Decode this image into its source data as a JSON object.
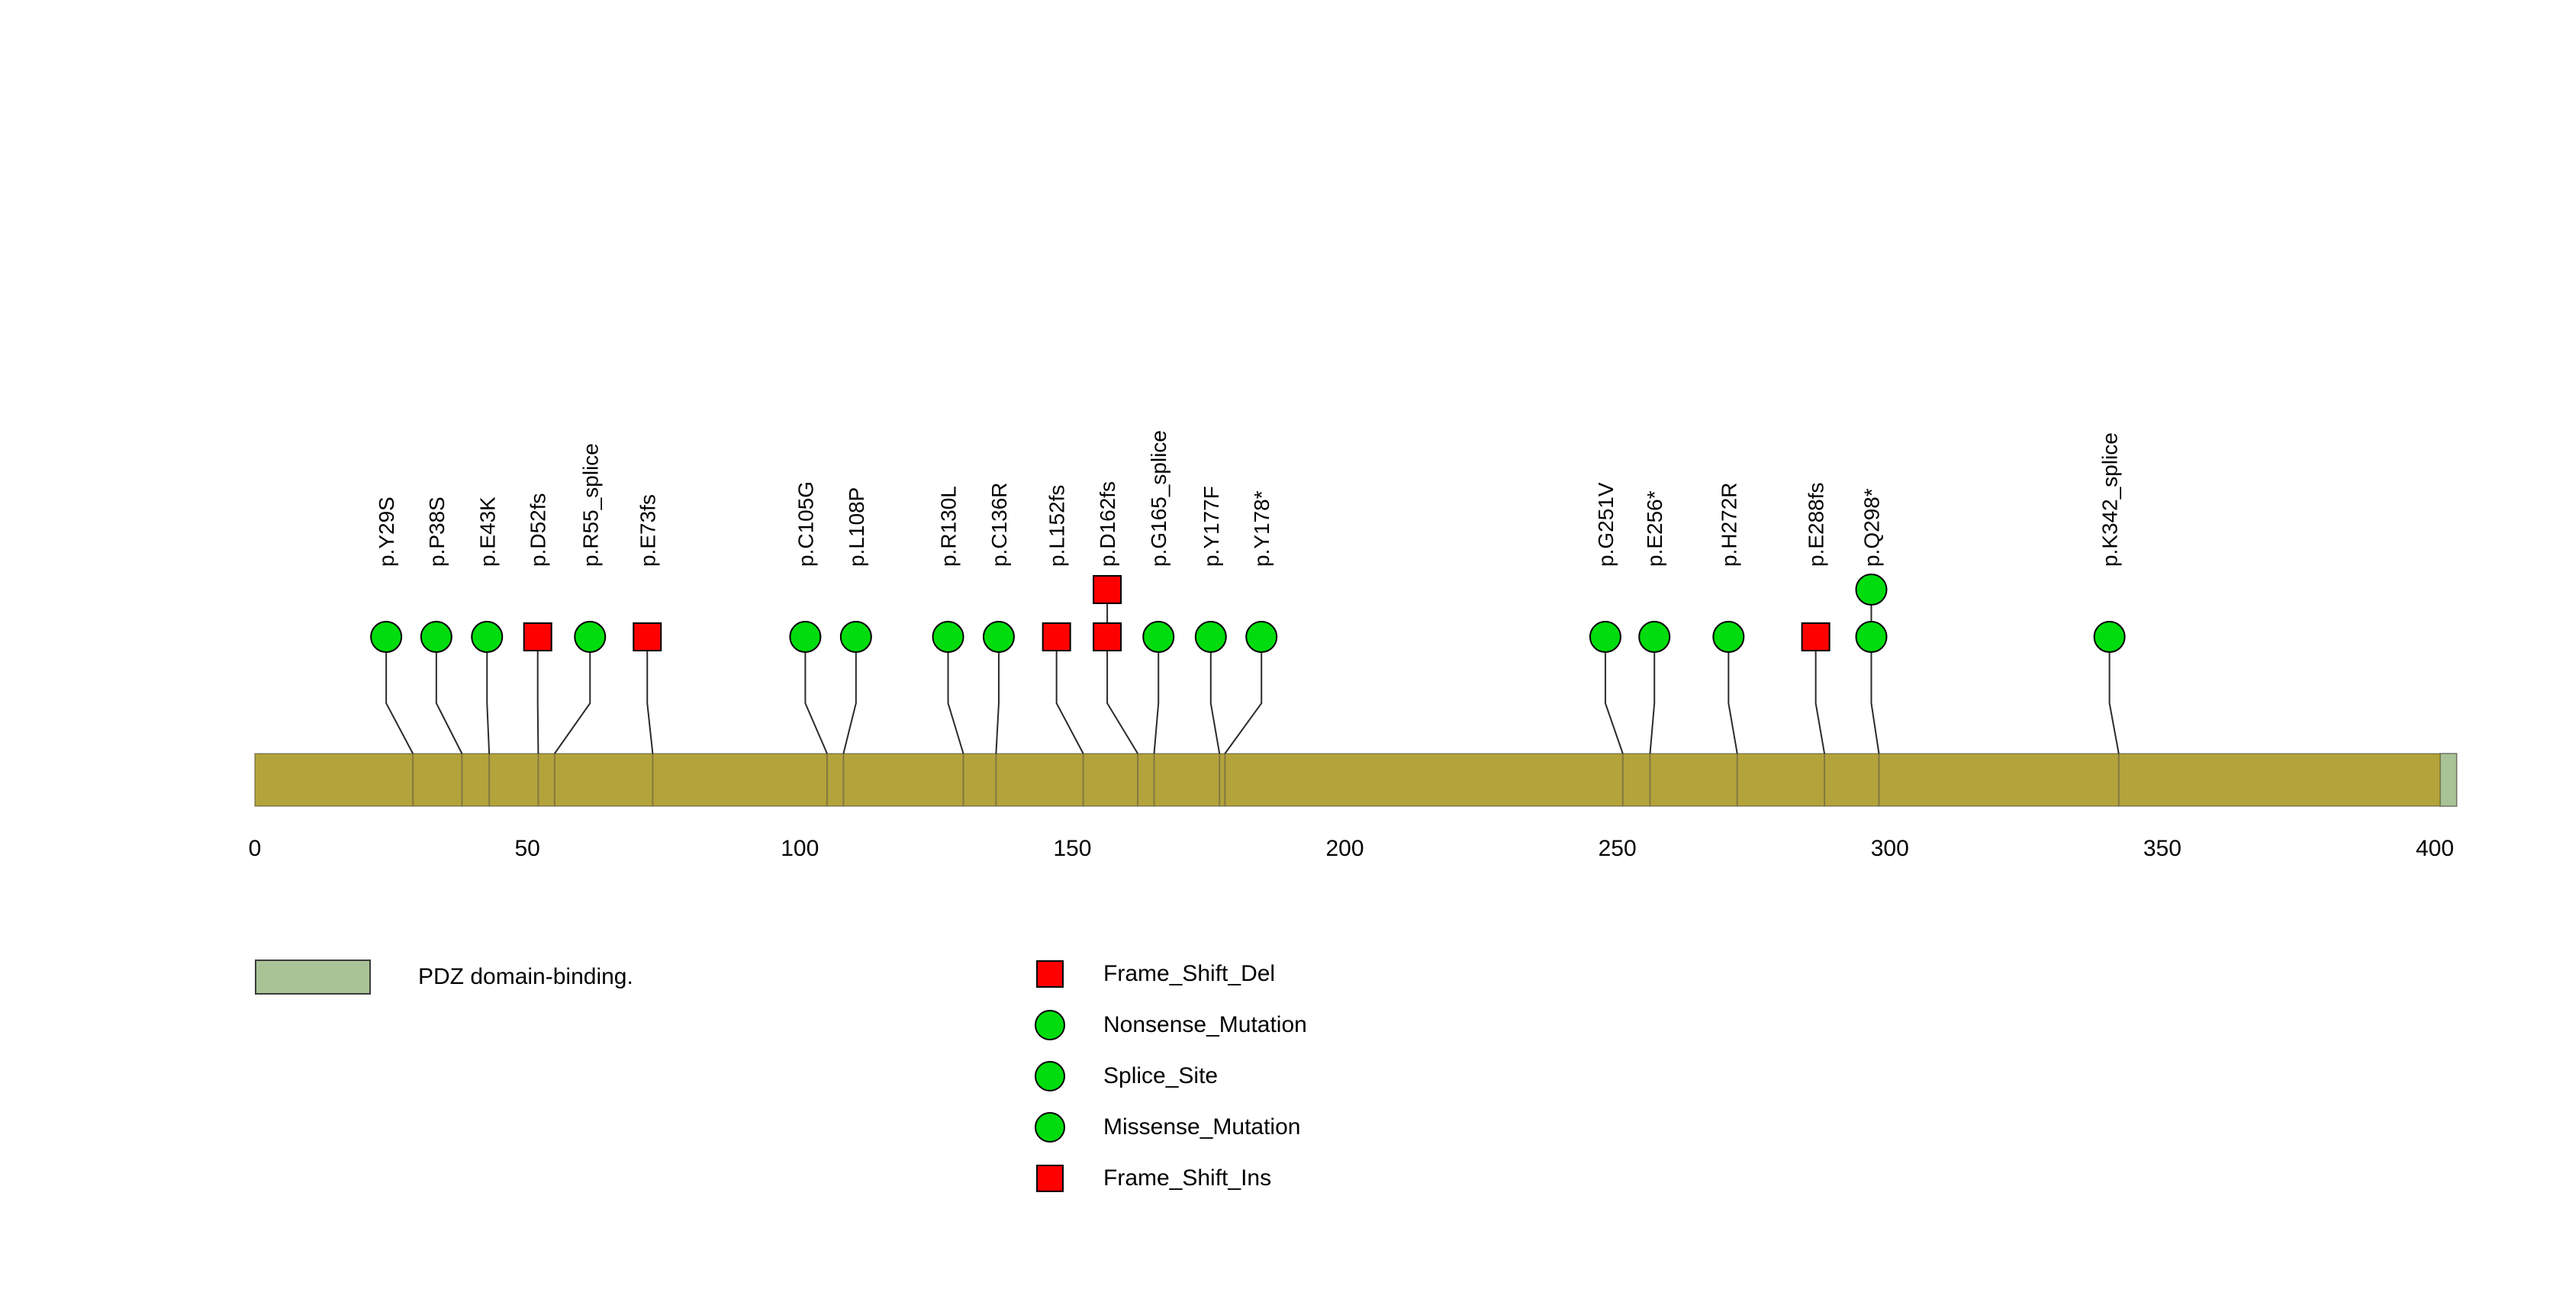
{
  "chart_data": {
    "type": "lollipop",
    "title": "",
    "xlabel": "",
    "ylabel": "",
    "xlim": [
      0,
      404
    ],
    "axis_ticks": [
      0,
      50,
      100,
      150,
      200,
      250,
      300,
      350,
      400
    ],
    "backbone": {
      "start": 0,
      "end": 404,
      "color": "#b3a33b"
    },
    "domains": [
      {
        "name": "PDZ domain-binding.",
        "start": 401,
        "end": 404,
        "color": "#a9c396"
      }
    ],
    "marker_colors": {
      "frame_shift": "#ff0000",
      "non_frame_shift": "#00dc0d"
    },
    "mutations": [
      {
        "label": "p.Y29S",
        "pos": 29,
        "display_pos": 24.1,
        "type": "Missense_Mutation",
        "shape": "circle",
        "color": "#00dc0d",
        "count": 1
      },
      {
        "label": "p.P38S",
        "pos": 38,
        "display_pos": 33.3,
        "type": "Missense_Mutation",
        "shape": "circle",
        "color": "#00dc0d",
        "count": 1
      },
      {
        "label": "p.E43K",
        "pos": 43,
        "display_pos": 42.6,
        "type": "Missense_Mutation",
        "shape": "circle",
        "color": "#00dc0d",
        "count": 1
      },
      {
        "label": "p.D52fs",
        "pos": 52,
        "display_pos": 51.9,
        "type": "Frame_Shift",
        "shape": "square",
        "color": "#ff0000",
        "count": 1
      },
      {
        "label": "p.R55_splice",
        "pos": 55,
        "display_pos": 61.5,
        "type": "Splice_Site",
        "shape": "circle",
        "color": "#00dc0d",
        "count": 1
      },
      {
        "label": "p.E73fs",
        "pos": 73,
        "display_pos": 72.0,
        "type": "Frame_Shift",
        "shape": "square",
        "color": "#ff0000",
        "count": 1
      },
      {
        "label": "p.C105G",
        "pos": 105,
        "display_pos": 101.0,
        "type": "Missense_Mutation",
        "shape": "circle",
        "color": "#00dc0d",
        "count": 1
      },
      {
        "label": "p.L108P",
        "pos": 108,
        "display_pos": 110.3,
        "type": "Missense_Mutation",
        "shape": "circle",
        "color": "#00dc0d",
        "count": 1
      },
      {
        "label": "p.R130L",
        "pos": 130,
        "display_pos": 127.2,
        "type": "Missense_Mutation",
        "shape": "circle",
        "color": "#00dc0d",
        "count": 1
      },
      {
        "label": "p.C136R",
        "pos": 136,
        "display_pos": 136.5,
        "type": "Missense_Mutation",
        "shape": "circle",
        "color": "#00dc0d",
        "count": 1
      },
      {
        "label": "p.L152fs",
        "pos": 152,
        "display_pos": 147.1,
        "type": "Frame_Shift",
        "shape": "square",
        "color": "#ff0000",
        "count": 1
      },
      {
        "label": "p.D162fs",
        "pos": 162,
        "display_pos": 156.4,
        "type": "Frame_Shift",
        "shape": "square",
        "color": "#ff0000",
        "count": 2
      },
      {
        "label": "p.G165_splice",
        "pos": 165,
        "display_pos": 165.8,
        "type": "Splice_Site",
        "shape": "circle",
        "color": "#00dc0d",
        "count": 1
      },
      {
        "label": "p.Y177F",
        "pos": 177,
        "display_pos": 175.4,
        "type": "Missense_Mutation",
        "shape": "circle",
        "color": "#00dc0d",
        "count": 1
      },
      {
        "label": "p.Y178*",
        "pos": 178,
        "display_pos": 184.7,
        "type": "Nonsense_Mutation",
        "shape": "circle",
        "color": "#00dc0d",
        "count": 1
      },
      {
        "label": "p.G251V",
        "pos": 251,
        "display_pos": 247.8,
        "type": "Missense_Mutation",
        "shape": "circle",
        "color": "#00dc0d",
        "count": 1
      },
      {
        "label": "p.E256*",
        "pos": 256,
        "display_pos": 256.8,
        "type": "Nonsense_Mutation",
        "shape": "circle",
        "color": "#00dc0d",
        "count": 1
      },
      {
        "label": "p.H272R",
        "pos": 272,
        "display_pos": 270.4,
        "type": "Missense_Mutation",
        "shape": "circle",
        "color": "#00dc0d",
        "count": 1
      },
      {
        "label": "p.E288fs",
        "pos": 288,
        "display_pos": 286.4,
        "type": "Frame_Shift",
        "shape": "square",
        "color": "#ff0000",
        "count": 1
      },
      {
        "label": "p.Q298*",
        "pos": 298,
        "display_pos": 296.6,
        "type": "Nonsense_Mutation",
        "shape": "circle",
        "color": "#00dc0d",
        "count": 2
      },
      {
        "label": "p.K342_splice",
        "pos": 342,
        "display_pos": 340.3,
        "type": "Splice_Site",
        "shape": "circle",
        "color": "#00dc0d",
        "count": 1
      }
    ]
  },
  "axis": {
    "tick_labels": [
      "0",
      "50",
      "100",
      "150",
      "200",
      "250",
      "300",
      "350",
      "400"
    ]
  },
  "legend": {
    "domain": {
      "label": "PDZ domain-binding.",
      "color": "#a9c396"
    },
    "items": [
      {
        "label": "Frame_Shift_Del",
        "shape": "square",
        "color": "#ff0000"
      },
      {
        "label": "Nonsense_Mutation",
        "shape": "circle",
        "color": "#00dc0d"
      },
      {
        "label": "Splice_Site",
        "shape": "circle",
        "color": "#00dc0d"
      },
      {
        "label": "Missense_Mutation",
        "shape": "circle",
        "color": "#00dc0d"
      },
      {
        "label": "Frame_Shift_Ins",
        "shape": "square",
        "color": "#ff0000"
      }
    ]
  }
}
